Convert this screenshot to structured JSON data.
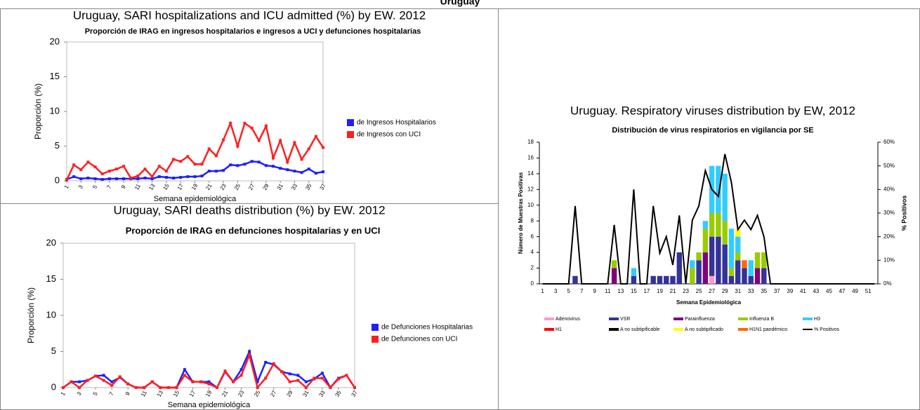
{
  "title": "Uruguay",
  "chart_data": [
    {
      "type": "line",
      "caption": "Uruguay, SARI hospitalizations and ICU admitted (%) by EW. 2012",
      "title": "Proporción de IRAG en ingresos hospitalarios e ingresos a UCI y defunciones hospitalarias",
      "x_label": "Semana epidemiológica",
      "y_label": "Proporción (%)",
      "x": [
        1,
        2,
        3,
        4,
        5,
        6,
        7,
        8,
        9,
        10,
        11,
        12,
        13,
        14,
        15,
        16,
        17,
        18,
        19,
        20,
        21,
        22,
        23,
        24,
        25,
        26,
        27,
        28,
        29,
        30,
        31,
        32,
        33,
        34,
        35,
        36,
        37
      ],
      "xlim": [
        1,
        37
      ],
      "xticks": [
        1,
        3,
        5,
        7,
        9,
        11,
        13,
        15,
        17,
        19,
        21,
        23,
        25,
        27,
        29,
        31,
        33,
        35,
        37
      ],
      "ylim": [
        0,
        20
      ],
      "yticks": [
        0,
        5,
        10,
        15,
        20
      ],
      "legend": "right",
      "series": [
        {
          "name": "de Ingresos Hospitalarios",
          "color": "#1f1fff",
          "values": [
            0.2,
            0.6,
            0.3,
            0.4,
            0.3,
            0.2,
            0.3,
            0.3,
            0.3,
            0.3,
            0.3,
            0.4,
            0.3,
            0.6,
            0.5,
            0.4,
            0.5,
            0.6,
            0.6,
            0.7,
            1.4,
            1.4,
            1.5,
            2.3,
            2.2,
            2.4,
            2.8,
            2.7,
            2.2,
            2.1,
            1.8,
            1.6,
            1.4,
            1.2,
            1.7,
            1.1,
            1.3
          ]
        },
        {
          "name": "de Ingresos con UCI",
          "color": "#ff1f1f",
          "values": [
            0.1,
            2.3,
            1.6,
            2.7,
            2.0,
            1.0,
            1.4,
            1.7,
            2.1,
            0.4,
            0.7,
            1.7,
            0.6,
            2.1,
            1.4,
            3.1,
            2.8,
            3.5,
            2.4,
            2.4,
            4.6,
            3.6,
            5.9,
            8.3,
            5.0,
            8.3,
            7.6,
            5.8,
            7.9,
            3.3,
            5.8,
            2.7,
            5.5,
            3.1,
            4.6,
            6.4,
            4.8
          ]
        }
      ]
    },
    {
      "type": "line",
      "caption": "Uruguay, SARI deaths distribution (%) by EW. 2012",
      "title": "Proporción de IRAG en defunciones hospitalarias y en UCI",
      "x_label": "Semana epidemiológica",
      "y_label": "Proporción (%)",
      "x": [
        1,
        2,
        3,
        4,
        5,
        6,
        7,
        8,
        9,
        10,
        11,
        12,
        13,
        14,
        15,
        16,
        17,
        18,
        19,
        20,
        21,
        22,
        23,
        24,
        25,
        26,
        27,
        28,
        29,
        30,
        31,
        32,
        33,
        34,
        35,
        36,
        37
      ],
      "xlim": [
        1,
        37
      ],
      "xticks": [
        1,
        3,
        5,
        7,
        9,
        11,
        13,
        15,
        17,
        19,
        21,
        23,
        25,
        27,
        29,
        31,
        33,
        35,
        37
      ],
      "ylim": [
        0,
        20
      ],
      "yticks": [
        0,
        5,
        10,
        15,
        20
      ],
      "legend": "right",
      "series": [
        {
          "name": "de Defunciones Hospitalarias",
          "color": "#1f1fff",
          "values": [
            0,
            0.8,
            0.8,
            1.0,
            1.6,
            1.7,
            0.8,
            1.4,
            0.5,
            0,
            0,
            0.8,
            0,
            0,
            0,
            2.5,
            0.8,
            0.8,
            0.8,
            0,
            2.2,
            0.8,
            2.5,
            5.0,
            0.8,
            3.5,
            3.2,
            2.2,
            1.9,
            1.7,
            0.8,
            1.2,
            2.0,
            0,
            1.3,
            1.7,
            0
          ]
        },
        {
          "name": "de Defunciones con UCI",
          "color": "#ff1f1f",
          "values": [
            0,
            0.8,
            0,
            1.0,
            1.6,
            1.0,
            0.3,
            1.5,
            0.5,
            0,
            0,
            0.8,
            0,
            0,
            0,
            1.7,
            0.8,
            0.8,
            0.5,
            0,
            2.3,
            0.8,
            1.7,
            4.5,
            0,
            1.3,
            3.3,
            2.2,
            0.8,
            1.0,
            0,
            1.3,
            1.3,
            0,
            1.2,
            1.7,
            0
          ]
        }
      ]
    },
    {
      "type": "bar",
      "stacked": true,
      "caption": "Uruguay. Respiratory viruses distribution by EW, 2012",
      "title": "Distribución de virus respiratorios en vigilancia por SE",
      "x_label": "Semana Epidemiológica",
      "y_label": "Número de Muestras Positivas",
      "y2_label": "% Positivos",
      "categories": [
        1,
        null,
        3,
        null,
        5,
        null,
        7,
        null,
        9,
        null,
        11,
        null,
        13,
        null,
        15,
        null,
        17,
        null,
        19,
        null,
        21,
        null,
        23,
        null,
        25,
        null,
        27,
        null,
        29,
        null,
        31,
        null,
        33,
        null,
        35,
        null,
        37,
        null,
        39,
        null,
        41,
        null,
        43,
        null,
        45,
        null,
        47,
        null,
        49,
        null,
        51,
        null
      ],
      "ylim": [
        0,
        18
      ],
      "yticks": [
        0,
        2,
        4,
        6,
        8,
        10,
        12,
        14,
        16,
        18
      ],
      "y2lim": [
        0,
        60
      ],
      "y2ticks": [
        {
          "value": 0,
          "label": "0%"
        },
        {
          "value": 10,
          "label": "10%"
        },
        {
          "value": 20,
          "label": "20%"
        },
        {
          "value": 30,
          "label": "30%"
        },
        {
          "value": 40,
          "label": "40%"
        },
        {
          "value": 50,
          "label": "50%"
        },
        {
          "value": 60,
          "label": "60%"
        }
      ],
      "legend": "bottom",
      "series": [
        {
          "name": "Adenovirus",
          "color": "#ff99cc",
          "values": [
            0,
            0,
            0,
            0,
            0,
            0,
            0,
            0,
            0,
            0,
            0,
            0,
            0,
            0,
            0,
            0,
            0,
            0,
            0,
            0,
            0,
            0,
            0,
            0,
            0,
            0,
            1,
            0,
            0,
            0,
            0,
            0,
            0,
            0,
            0,
            0,
            0,
            0,
            0,
            0,
            0,
            0,
            0,
            0,
            0,
            0,
            0,
            0,
            0,
            0,
            0,
            0
          ]
        },
        {
          "name": "VSR",
          "color": "#333399",
          "values": [
            0,
            0,
            0,
            0,
            0,
            1,
            0,
            0,
            0,
            0,
            0,
            0,
            0,
            0,
            1,
            0,
            0,
            1,
            1,
            1,
            1,
            4,
            0,
            0,
            3,
            0,
            5,
            6,
            5,
            1,
            3,
            2,
            1,
            0,
            2,
            0,
            0,
            0,
            0,
            0,
            0,
            0,
            0,
            0,
            0,
            0,
            0,
            0,
            0,
            0,
            0,
            0
          ]
        },
        {
          "name": "Parainfluenza",
          "color": "#800080",
          "values": [
            0,
            0,
            0,
            0,
            0,
            0,
            0,
            0,
            0,
            0,
            0,
            2,
            0,
            0,
            0,
            0,
            0,
            0,
            0,
            0,
            0,
            0,
            0,
            0,
            0,
            4,
            0,
            0,
            0,
            0,
            0,
            0,
            0,
            2,
            0,
            0,
            0,
            0,
            0,
            0,
            0,
            0,
            0,
            0,
            0,
            0,
            0,
            0,
            0,
            0,
            0,
            0
          ]
        },
        {
          "name": "Influenza B",
          "color": "#99cc00",
          "values": [
            0,
            0,
            0,
            0,
            0,
            0,
            0,
            0,
            0,
            0,
            0,
            1,
            0,
            0,
            0,
            0,
            0,
            0,
            0,
            0,
            0,
            0,
            0,
            2,
            1,
            3,
            3,
            3,
            3,
            1,
            1,
            0,
            0,
            2,
            2,
            0,
            0,
            0,
            0,
            0,
            0,
            0,
            0,
            0,
            0,
            0,
            0,
            0,
            0,
            0,
            0,
            0
          ]
        },
        {
          "name": "H3",
          "color": "#33ccff",
          "values": [
            0,
            0,
            0,
            0,
            0,
            0,
            0,
            0,
            0,
            0,
            0,
            0,
            0,
            0,
            1,
            0,
            0,
            0,
            0,
            0,
            0,
            0,
            0,
            1,
            0,
            1,
            6,
            6,
            6,
            5,
            2,
            0,
            2,
            0,
            0,
            0,
            0,
            0,
            0,
            0,
            0,
            0,
            0,
            0,
            0,
            0,
            0,
            0,
            0,
            0,
            0,
            0
          ]
        },
        {
          "name": "H1",
          "color": "#ff0000",
          "values": [
            0,
            0,
            0,
            0,
            0,
            0,
            0,
            0,
            0,
            0,
            0,
            0,
            0,
            0,
            0,
            0,
            0,
            0,
            0,
            0,
            0,
            0,
            0,
            0,
            0,
            0,
            0,
            0,
            0,
            0,
            0,
            0,
            0,
            0,
            0,
            0,
            0,
            0,
            0,
            0,
            0,
            0,
            0,
            0,
            0,
            0,
            0,
            0,
            0,
            0,
            0,
            0
          ]
        },
        {
          "name": "A no subtipificable",
          "color": "#000000",
          "values": [
            0,
            0,
            0,
            0,
            0,
            0,
            0,
            0,
            0,
            0,
            0,
            0,
            0,
            0,
            0,
            0,
            0,
            0,
            0,
            0,
            0,
            0,
            0,
            0,
            0,
            0,
            0,
            0,
            0,
            0,
            0,
            0,
            0,
            0,
            0,
            0,
            0,
            0,
            0,
            0,
            0,
            0,
            0,
            0,
            0,
            0,
            0,
            0,
            0,
            0,
            0,
            0
          ]
        },
        {
          "name": "A no subtipificado",
          "color": "#ffff00",
          "values": [
            0,
            0,
            0,
            0,
            0,
            0,
            0,
            0,
            0,
            0,
            0,
            0,
            0,
            0,
            0,
            0,
            0,
            0,
            0,
            0,
            0,
            0,
            0,
            0,
            0,
            0,
            0,
            0,
            0,
            0,
            1,
            0,
            0,
            0,
            0,
            0,
            0,
            0,
            0,
            0,
            0,
            0,
            0,
            0,
            0,
            0,
            0,
            0,
            0,
            0,
            0,
            0
          ]
        },
        {
          "name": "H1N1 pandémico",
          "color": "#ff6600",
          "values": [
            0,
            0,
            0,
            0,
            0,
            0,
            0,
            0,
            0,
            0,
            0,
            0,
            0,
            0,
            0,
            0,
            0,
            0,
            0,
            0,
            0,
            0,
            0,
            0,
            0,
            0,
            0,
            0,
            0,
            0,
            0,
            1,
            0,
            0,
            0,
            0,
            0,
            0,
            0,
            0,
            0,
            0,
            0,
            0,
            0,
            0,
            0,
            0,
            0,
            0,
            0,
            0
          ]
        },
        {
          "name": "% Positivos",
          "color": "#000000",
          "axis": "y2",
          "values": [
            0,
            0,
            0,
            0,
            0,
            33,
            0,
            0,
            0,
            0,
            0,
            25,
            0,
            0,
            40,
            0,
            0,
            33,
            13,
            20,
            8,
            29,
            0,
            27,
            33,
            48,
            40,
            37,
            55,
            43,
            23,
            27,
            23,
            29,
            20,
            0,
            0,
            0,
            0,
            0,
            0,
            0,
            0,
            0,
            0,
            0,
            0,
            0,
            0,
            0,
            0,
            0
          ]
        }
      ]
    }
  ]
}
